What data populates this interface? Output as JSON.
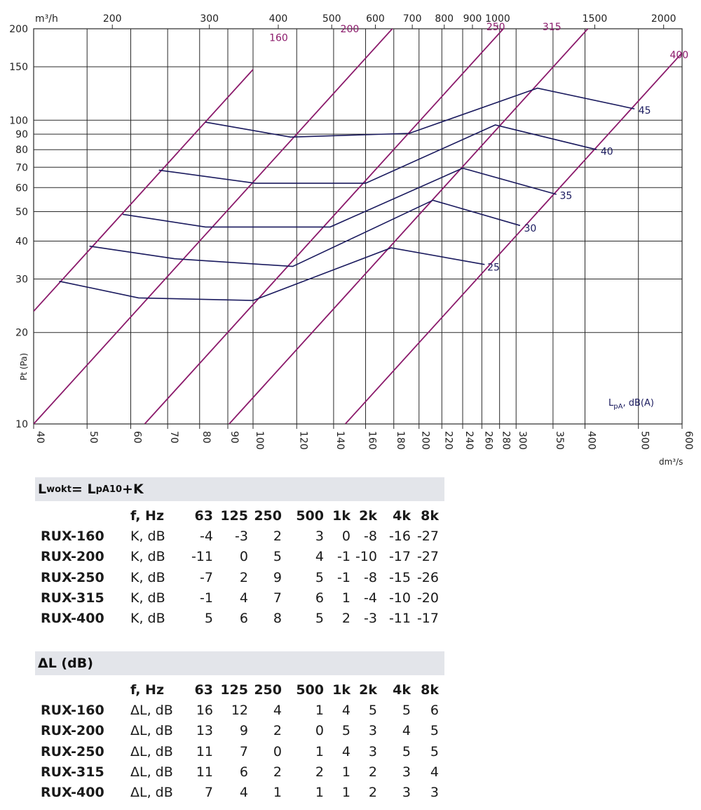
{
  "chart_data": {
    "type": "line",
    "x_axis": {
      "label": "dm³/s",
      "scale": "log",
      "range": [
        40,
        600
      ],
      "ticks": [
        40,
        50,
        60,
        70,
        80,
        90,
        100,
        120,
        140,
        160,
        180,
        200,
        220,
        240,
        260,
        280,
        300,
        350,
        400,
        500,
        600
      ]
    },
    "x2_axis": {
      "label": "m³/h",
      "scale": "log",
      "ticks": [
        200,
        300,
        400,
        500,
        600,
        700,
        800,
        900,
        1000,
        1500,
        2000
      ]
    },
    "y_axis": {
      "label": "Pt (Pa)",
      "scale": "log",
      "range": [
        10,
        200
      ],
      "ticks": [
        10,
        20,
        30,
        40,
        50,
        60,
        70,
        80,
        90,
        100,
        150,
        200
      ]
    },
    "grid": true,
    "size_lines": [
      {
        "name": "160",
        "points": [
          [
            40,
            23.5
          ],
          [
            100,
            146.9
          ]
        ]
      },
      {
        "name": "200",
        "points": [
          [
            40,
            10
          ],
          [
            300,
            562.5
          ]
        ]
      },
      {
        "name": "250",
        "points": [
          [
            63.6,
            10
          ],
          [
            500,
            618.0
          ]
        ]
      },
      {
        "name": "315",
        "points": [
          [
            90.5,
            10
          ],
          [
            600,
            439.5
          ]
        ]
      },
      {
        "name": "400",
        "points": [
          [
            147,
            10
          ],
          [
            600,
            166.6
          ]
        ]
      }
    ],
    "size_label_positions": [
      [
        107,
        182
      ],
      [
        144,
        195
      ],
      [
        265,
        198
      ],
      [
        335,
        198
      ],
      [
        570,
        160
      ]
    ],
    "noise_lines": [
      {
        "name": "25",
        "points": [
          [
            44.5,
            29.5
          ],
          [
            62,
            26
          ],
          [
            100,
            25.5
          ],
          [
            178,
            38
          ],
          [
            263,
            33.5
          ]
        ]
      },
      {
        "name": "30",
        "points": [
          [
            50.5,
            38.5
          ],
          [
            72,
            35
          ],
          [
            118,
            33
          ],
          [
            212,
            54.5
          ],
          [
            305,
            45
          ]
        ]
      },
      {
        "name": "35",
        "points": [
          [
            58,
            49
          ],
          [
            82,
            44.5
          ],
          [
            138,
            44.5
          ],
          [
            240,
            69.5
          ],
          [
            355,
            57
          ]
        ]
      },
      {
        "name": "40",
        "points": [
          [
            67.5,
            68.5
          ],
          [
            101,
            62
          ],
          [
            160,
            62
          ],
          [
            275,
            96.5
          ],
          [
            420,
            80
          ]
        ]
      },
      {
        "name": "45",
        "points": [
          [
            82,
            98.5
          ],
          [
            117,
            88
          ],
          [
            192,
            90.5
          ],
          [
            328,
            127.5
          ],
          [
            492,
            109
          ]
        ]
      }
    ],
    "noise_label_positions": [
      [
        266,
        32
      ],
      [
        310,
        43
      ],
      [
        360,
        55
      ],
      [
        427,
        77
      ],
      [
        500,
        105
      ]
    ],
    "lpa_label": "L",
    "lpa_label_sub": "pA",
    "lpa_label_tail": ", dB(A)",
    "colors": {
      "size_line": "#8b1a6b",
      "noise_line": "#1a1a5e",
      "grid": "#2a2a2a"
    }
  },
  "table_k": {
    "title_main": "L",
    "title_sub1": "wokt",
    "title_eq": "= L",
    "title_sub2": "pA10",
    "title_tail": "+K",
    "header": [
      "f, Hz",
      "63",
      "125",
      "250",
      "500",
      "1k",
      "2k",
      "4k",
      "8k"
    ],
    "rows": [
      {
        "model": "RUX-160",
        "unit": "K, dB",
        "values": [
          "-4",
          "-3",
          "2",
          "3",
          "0",
          "-8",
          "-16",
          "-27"
        ]
      },
      {
        "model": "RUX-200",
        "unit": "K, dB",
        "values": [
          "-11",
          "0",
          "5",
          "4",
          "-1",
          "-10",
          "-17",
          "-27"
        ]
      },
      {
        "model": "RUX-250",
        "unit": "K, dB",
        "values": [
          "-7",
          "2",
          "9",
          "5",
          "-1",
          "-8",
          "-15",
          "-26"
        ]
      },
      {
        "model": "RUX-315",
        "unit": "K, dB",
        "values": [
          "-1",
          "4",
          "7",
          "6",
          "1",
          "-4",
          "-10",
          "-20"
        ]
      },
      {
        "model": "RUX-400",
        "unit": "K, dB",
        "values": [
          "5",
          "6",
          "8",
          "5",
          "2",
          "-3",
          "-11",
          "-17"
        ]
      }
    ]
  },
  "table_dl": {
    "title": "ΔL (dB)",
    "header": [
      "f, Hz",
      "63",
      "125",
      "250",
      "500",
      "1k",
      "2k",
      "4k",
      "8k"
    ],
    "rows": [
      {
        "model": "RUX-160",
        "unit": "ΔL, dB",
        "values": [
          "16",
          "12",
          "4",
          "1",
          "4",
          "5",
          "5",
          "6"
        ]
      },
      {
        "model": "RUX-200",
        "unit": "ΔL, dB",
        "values": [
          "13",
          "9",
          "2",
          "0",
          "5",
          "3",
          "4",
          "5"
        ]
      },
      {
        "model": "RUX-250",
        "unit": "ΔL, dB",
        "values": [
          "11",
          "7",
          "0",
          "1",
          "4",
          "3",
          "5",
          "5"
        ]
      },
      {
        "model": "RUX-315",
        "unit": "ΔL, dB",
        "values": [
          "11",
          "6",
          "2",
          "2",
          "1",
          "2",
          "3",
          "4"
        ]
      },
      {
        "model": "RUX-400",
        "unit": "ΔL, dB",
        "values": [
          "7",
          "4",
          "1",
          "1",
          "1",
          "2",
          "3",
          "3"
        ]
      }
    ]
  }
}
